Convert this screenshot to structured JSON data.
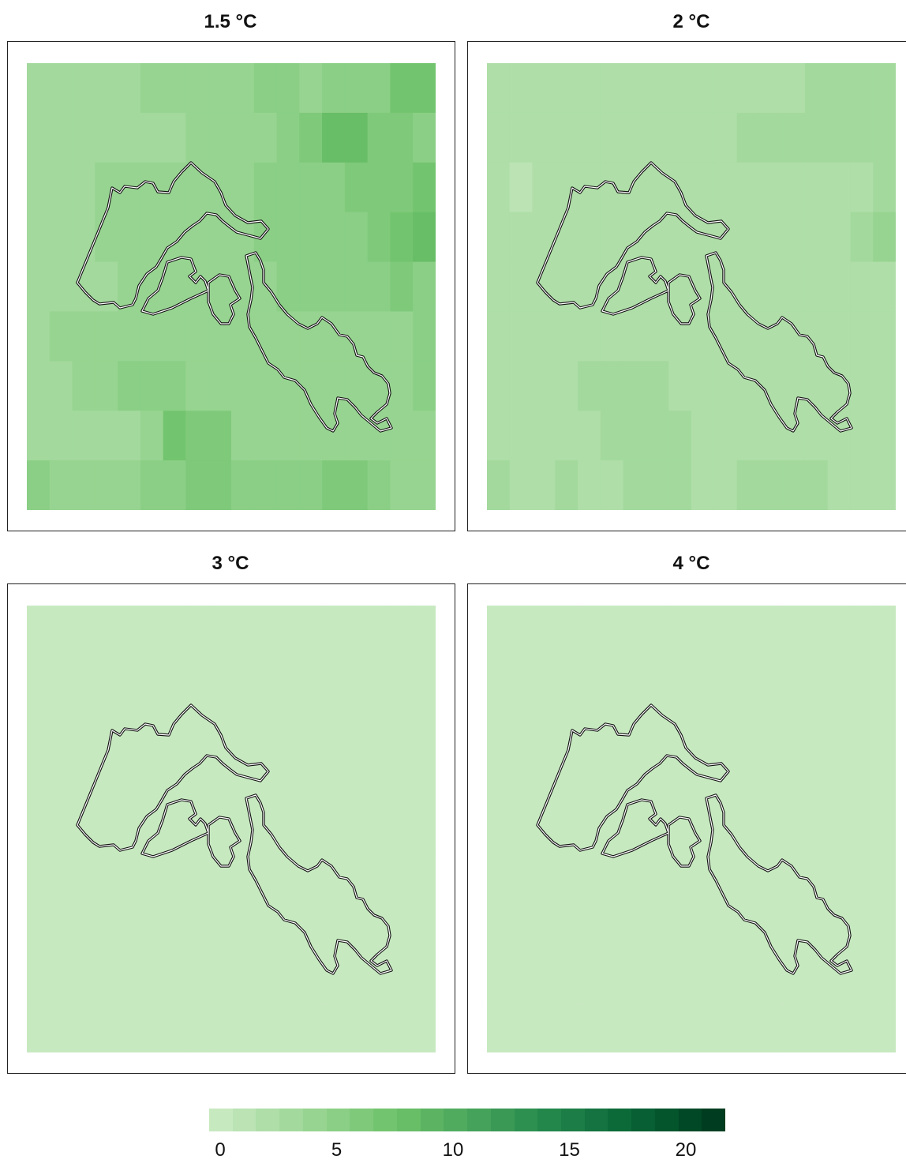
{
  "panels": [
    {
      "title": "1.5 °C",
      "grid": [
        [
          3,
          3,
          3,
          3,
          3,
          4,
          4,
          4,
          4,
          4,
          5,
          5,
          4,
          5,
          5,
          5,
          7,
          7
        ],
        [
          3,
          3,
          3,
          3,
          3,
          3,
          3,
          4,
          4,
          4,
          4,
          5,
          6,
          8,
          8,
          6,
          6,
          5
        ],
        [
          3,
          3,
          3,
          4,
          4,
          4,
          4,
          4,
          4,
          4,
          5,
          5,
          5,
          5,
          6,
          6,
          6,
          7
        ],
        [
          3,
          3,
          3,
          4,
          4,
          4,
          4,
          4,
          4,
          4,
          5,
          5,
          5,
          5,
          5,
          6,
          7,
          8
        ],
        [
          3,
          3,
          3,
          3,
          4,
          4,
          4,
          4,
          4,
          4,
          4,
          5,
          5,
          5,
          5,
          5,
          6,
          5
        ],
        [
          3,
          4,
          4,
          4,
          4,
          4,
          4,
          4,
          4,
          4,
          4,
          4,
          4,
          4,
          4,
          4,
          4,
          5
        ],
        [
          3,
          3,
          4,
          4,
          5,
          5,
          5,
          4,
          4,
          4,
          4,
          4,
          4,
          4,
          4,
          4,
          4,
          5
        ],
        [
          3,
          3,
          3,
          3,
          3,
          4,
          7,
          6,
          6,
          4,
          4,
          4,
          4,
          4,
          4,
          4,
          4,
          4
        ],
        [
          5,
          4,
          4,
          4,
          4,
          5,
          5,
          6,
          6,
          5,
          5,
          5,
          5,
          6,
          6,
          5,
          4,
          4
        ]
      ]
    },
    {
      "title": "2 °C",
      "grid": [
        [
          2,
          2,
          2,
          2,
          2,
          2,
          2,
          2,
          2,
          2,
          2,
          2,
          2,
          2,
          3,
          3,
          3,
          3
        ],
        [
          2,
          2,
          2,
          2,
          2,
          2,
          2,
          2,
          2,
          2,
          2,
          3,
          3,
          3,
          3,
          3,
          3,
          3
        ],
        [
          2,
          1,
          2,
          2,
          2,
          2,
          2,
          2,
          2,
          2,
          2,
          2,
          2,
          2,
          2,
          2,
          2,
          3
        ],
        [
          2,
          2,
          2,
          2,
          2,
          2,
          2,
          2,
          2,
          2,
          2,
          2,
          2,
          2,
          2,
          2,
          3,
          4
        ],
        [
          2,
          2,
          2,
          2,
          2,
          2,
          2,
          2,
          2,
          2,
          2,
          2,
          2,
          2,
          2,
          2,
          2,
          2
        ],
        [
          2,
          2,
          2,
          2,
          2,
          2,
          2,
          2,
          2,
          2,
          2,
          2,
          2,
          2,
          2,
          2,
          2,
          2
        ],
        [
          2,
          2,
          2,
          2,
          3,
          3,
          3,
          3,
          2,
          2,
          2,
          2,
          2,
          2,
          2,
          2,
          2,
          2
        ],
        [
          2,
          2,
          2,
          2,
          2,
          3,
          3,
          3,
          3,
          2,
          2,
          2,
          2,
          2,
          2,
          2,
          2,
          2
        ],
        [
          3,
          2,
          2,
          3,
          2,
          2,
          3,
          3,
          3,
          2,
          2,
          3,
          3,
          3,
          3,
          2,
          2,
          2
        ]
      ]
    },
    {
      "title": "3 °C",
      "grid": [
        [
          0,
          0,
          0,
          0,
          0,
          0,
          0,
          0,
          0,
          0,
          0,
          0,
          0,
          0,
          0,
          0,
          0,
          0
        ],
        [
          0,
          0,
          0,
          0,
          0,
          0,
          0,
          0,
          0,
          0,
          0,
          0,
          0,
          0,
          0,
          0,
          0,
          0
        ],
        [
          0,
          0,
          0,
          0,
          0,
          0,
          0,
          0,
          0,
          0,
          0,
          0,
          0,
          0,
          0,
          0,
          0,
          0
        ],
        [
          0,
          0,
          0,
          0,
          0,
          0,
          0,
          0,
          0,
          0,
          0,
          0,
          0,
          0,
          0,
          0,
          0,
          0
        ],
        [
          0,
          0,
          0,
          0,
          0,
          0,
          0,
          0,
          0,
          0,
          0,
          0,
          0,
          0,
          0,
          0,
          0,
          0
        ],
        [
          0,
          0,
          0,
          0,
          0,
          0,
          0,
          0,
          0,
          0,
          0,
          0,
          0,
          0,
          0,
          0,
          0,
          0
        ],
        [
          0,
          0,
          0,
          0,
          0,
          0,
          0,
          0,
          0,
          0,
          0,
          0,
          0,
          0,
          0,
          0,
          0,
          0
        ],
        [
          0,
          0,
          0,
          0,
          0,
          0,
          0,
          0,
          0,
          0,
          0,
          0,
          0,
          0,
          0,
          0,
          0,
          0
        ],
        [
          0,
          0,
          0,
          0,
          0,
          0,
          0,
          0,
          0,
          0,
          0,
          0,
          0,
          0,
          0,
          0,
          0,
          0
        ]
      ]
    },
    {
      "title": "4 °C",
      "grid": [
        [
          0,
          0,
          0,
          0,
          0,
          0,
          0,
          0,
          0,
          0,
          0,
          0,
          0,
          0,
          0,
          0,
          0,
          0
        ],
        [
          0,
          0,
          0,
          0,
          0,
          0,
          0,
          0,
          0,
          0,
          0,
          0,
          0,
          0,
          0,
          0,
          0,
          0
        ],
        [
          0,
          0,
          0,
          0,
          0,
          0,
          0,
          0,
          0,
          0,
          0,
          0,
          0,
          0,
          0,
          0,
          0,
          0
        ],
        [
          0,
          0,
          0,
          0,
          0,
          0,
          0,
          0,
          0,
          0,
          0,
          0,
          0,
          0,
          0,
          0,
          0,
          0
        ],
        [
          0,
          0,
          0,
          0,
          0,
          0,
          0,
          0,
          0,
          0,
          0,
          0,
          0,
          0,
          0,
          0,
          0,
          0
        ],
        [
          0,
          0,
          0,
          0,
          0,
          0,
          0,
          0,
          0,
          0,
          0,
          0,
          0,
          0,
          0,
          0,
          0,
          0
        ],
        [
          0,
          0,
          0,
          0,
          0,
          0,
          0,
          0,
          0,
          0,
          0,
          0,
          0,
          0,
          0,
          0,
          0,
          0
        ],
        [
          0,
          0,
          0,
          0,
          0,
          0,
          0,
          0,
          0,
          0,
          0,
          0,
          0,
          0,
          0,
          0,
          0,
          0
        ],
        [
          0,
          0,
          0,
          0,
          0,
          0,
          0,
          0,
          0,
          0,
          0,
          0,
          0,
          0,
          0,
          0,
          0,
          0
        ]
      ]
    }
  ],
  "legend": {
    "ticks": [
      "0",
      "5",
      "10",
      "15",
      "20"
    ],
    "tick_values": [
      0,
      5,
      10,
      15,
      20
    ],
    "min": 0,
    "max": 22,
    "colors": [
      "#c7e9c0",
      "#bbe3b4",
      "#afdea8",
      "#a3d99d",
      "#97d491",
      "#8bcf86",
      "#7fc97b",
      "#73c46f",
      "#68bd67",
      "#5cb463",
      "#51ab5f",
      "#45a25a",
      "#3a9955",
      "#2e9050",
      "#23874c",
      "#1c7d46",
      "#147340",
      "#0c6a39",
      "#075f33",
      "#04542c",
      "#014826",
      "#003c1f"
    ]
  }
}
